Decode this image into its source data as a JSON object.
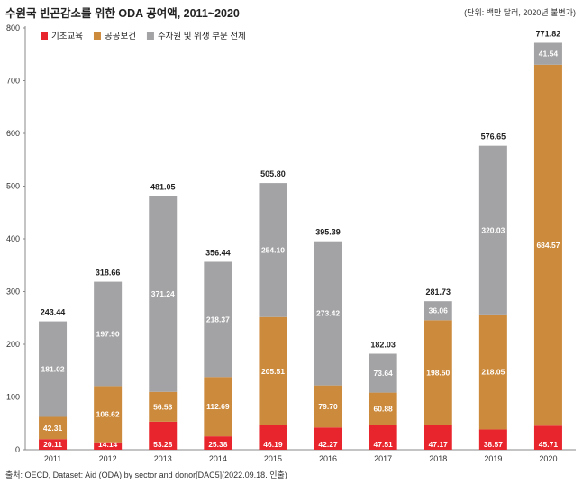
{
  "header": {
    "title": "수원국 빈곤감소를 위한 ODA 공여액, 2011~2020",
    "unit": "(단위: 백만 달러, 2020년 불변가)"
  },
  "footer": {
    "source": "출처: OECD, Dataset: Aid (ODA) by sector and donor[DAC5](2022.09.18. 인출)"
  },
  "chart_data": {
    "type": "bar",
    "stacked": true,
    "title": "수원국 빈곤감소를 위한 ODA 공여액, 2011~2020",
    "xlabel": "",
    "ylabel": "",
    "ylim": [
      0,
      800
    ],
    "yticks": [
      0,
      100,
      200,
      300,
      400,
      500,
      600,
      700,
      800
    ],
    "grid": false,
    "legend_position": "top-left",
    "categories": [
      "2011",
      "2012",
      "2013",
      "2014",
      "2015",
      "2016",
      "2017",
      "2018",
      "2019",
      "2020"
    ],
    "series": [
      {
        "name": "기초교육",
        "color": "#e8242c",
        "values": [
          20.11,
          14.14,
          53.28,
          25.38,
          46.19,
          42.27,
          47.51,
          47.17,
          38.57,
          45.71
        ],
        "labels": [
          "20.11",
          "14.14",
          "53.28",
          "25.38",
          "46.19",
          "42.27",
          "47.51",
          "47.17",
          "38.57",
          "45.71"
        ]
      },
      {
        "name": "공공보건",
        "color": "#cc8a3c",
        "values": [
          42.31,
          106.62,
          56.53,
          112.69,
          205.51,
          79.7,
          60.88,
          198.5,
          218.05,
          684.57
        ],
        "labels": [
          "42.31",
          "106.62",
          "56.53",
          "112.69",
          "205.51",
          "79.70",
          "60.88",
          "198.50",
          "218.05",
          "684.57"
        ]
      },
      {
        "name": "수자원 및 위생 부문 전체",
        "color": "#a3a3a5",
        "values": [
          181.02,
          197.9,
          371.24,
          218.37,
          254.1,
          273.42,
          73.64,
          36.06,
          320.03,
          41.54
        ],
        "labels": [
          "181.02",
          "197.90",
          "371.24",
          "218.37",
          "254.10",
          "273.42",
          "73.64",
          "36.06",
          "320.03",
          "41.54"
        ]
      }
    ],
    "totals": [
      243.44,
      318.66,
      481.05,
      356.44,
      505.8,
      395.39,
      182.03,
      281.73,
      576.65,
      771.82
    ],
    "total_labels": [
      "243.44",
      "318.66",
      "481.05",
      "356.44",
      "505.80",
      "395.39",
      "182.03",
      "281.73",
      "576.65",
      "771.82"
    ]
  }
}
